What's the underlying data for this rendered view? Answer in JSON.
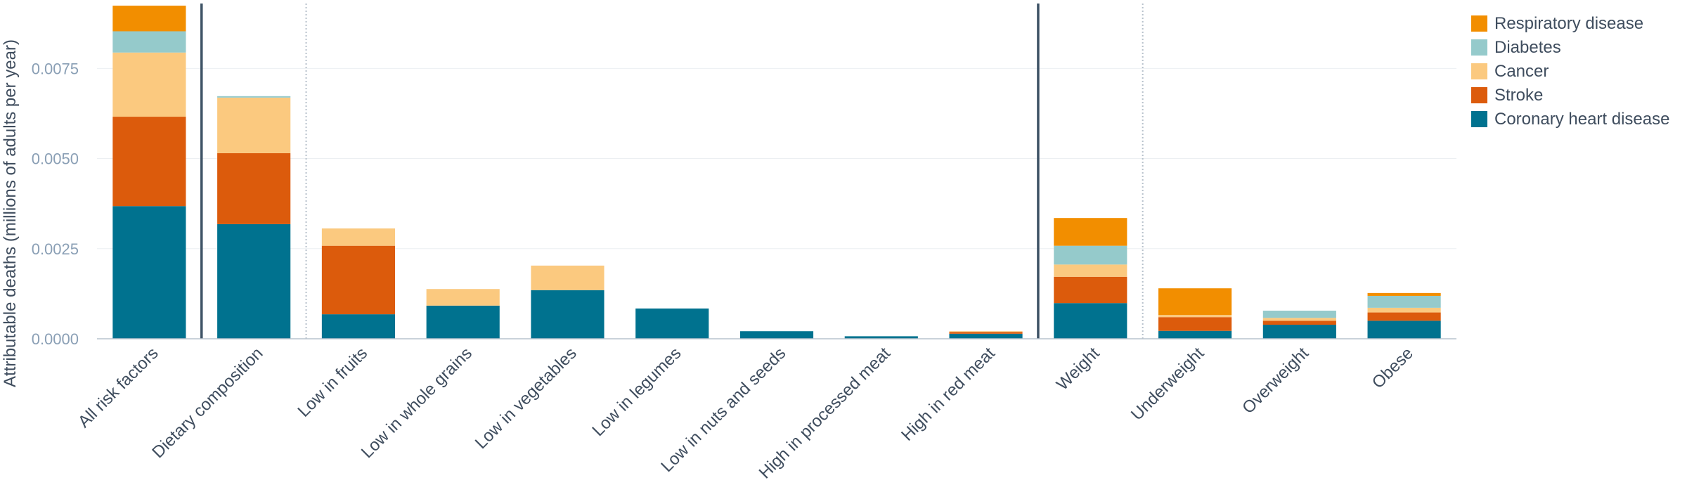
{
  "chart_data": {
    "type": "bar",
    "stacked": true,
    "title": "",
    "xlabel": "",
    "ylabel": "Attributable deaths (millions of adults per year)",
    "ylim": [
      0,
      0.0093
    ],
    "yticks": [
      0.0,
      0.0025,
      0.005,
      0.0075
    ],
    "ytick_labels": [
      "0.0000",
      "0.0025",
      "0.0050",
      "0.0075"
    ],
    "grid": true,
    "legend_position": "top-right",
    "categories": [
      "All risk factors",
      "Dietary composition",
      "Low in fruits",
      "Low in whole grains",
      "Low in vegetables",
      "Low in legumes",
      "Low in nuts and seeds",
      "High in processed meat",
      "High in red meat",
      "Weight",
      "Underweight",
      "Overweight",
      "Obese"
    ],
    "series": [
      {
        "name": "Coronary heart disease",
        "color": "#00728f",
        "values": [
          0.00368,
          0.00318,
          0.00068,
          0.00092,
          0.00135,
          0.00084,
          0.00021,
          7e-05,
          0.00014,
          0.00099,
          0.00022,
          0.00039,
          0.0005
        ]
      },
      {
        "name": "Stroke",
        "color": "#dc5b0c",
        "values": [
          0.00248,
          0.00197,
          0.0019,
          0.0,
          0.0,
          0.0,
          0.0,
          0.0,
          5e-05,
          0.00073,
          0.00038,
          0.00011,
          0.00023
        ]
      },
      {
        "name": "Cancer",
        "color": "#fbc97f",
        "values": [
          0.00178,
          0.00154,
          0.00048,
          0.00046,
          0.00068,
          0.0,
          0.0,
          0.0,
          2e-05,
          0.00034,
          6e-05,
          8e-05,
          0.00013
        ]
      },
      {
        "name": "Diabetes",
        "color": "#95cacb",
        "values": [
          0.00059,
          4e-05,
          0.0,
          0.0,
          0.0,
          0.0,
          0.0,
          0.0,
          0.0,
          0.00052,
          0.0,
          0.0002,
          0.00033
        ]
      },
      {
        "name": "Respiratory disease",
        "color": "#f28e00",
        "values": [
          0.00071,
          0.0,
          0.0,
          0.0,
          0.0,
          0.0,
          0.0,
          0.0,
          0.0,
          0.00077,
          0.00074,
          0.0,
          8e-05
        ]
      }
    ],
    "legend_order": [
      "Respiratory disease",
      "Diabetes",
      "Cancer",
      "Stroke",
      "Coronary heart disease"
    ],
    "separators": [
      {
        "after_category": 0,
        "style": "solid"
      },
      {
        "after_category": 1,
        "style": "dotted"
      },
      {
        "after_category": 8,
        "style": "solid"
      },
      {
        "after_category": 9,
        "style": "dotted"
      }
    ]
  }
}
